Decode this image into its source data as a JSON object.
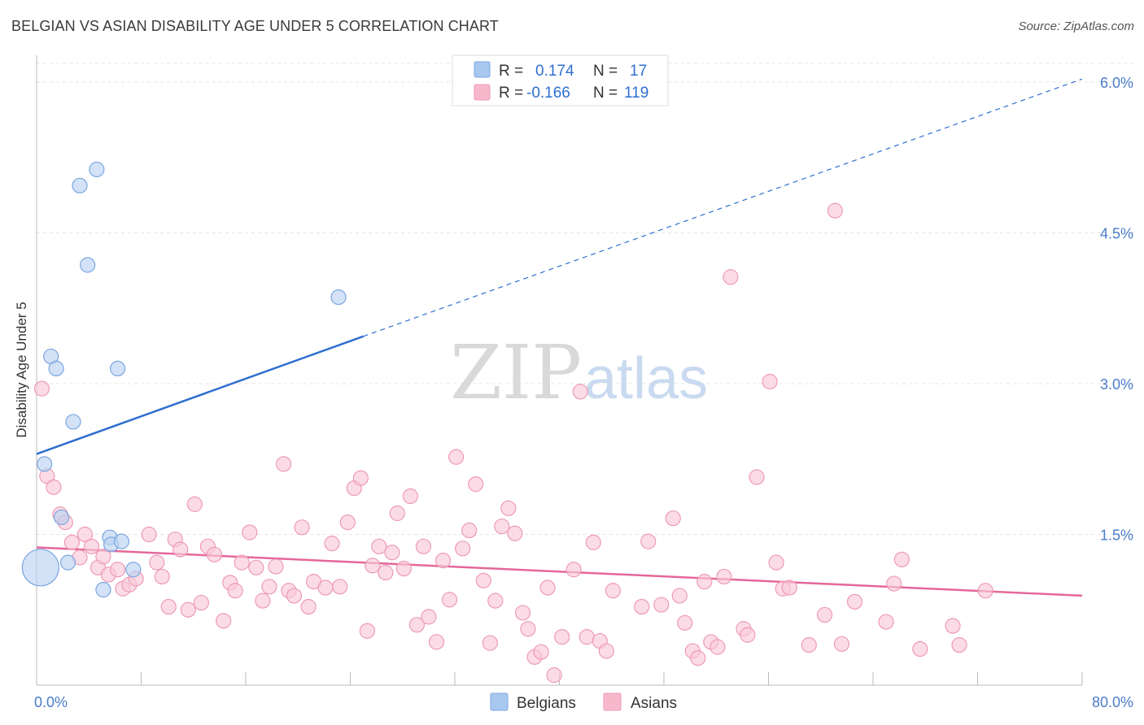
{
  "header": {
    "title": "BELGIAN VS ASIAN DISABILITY AGE UNDER 5 CORRELATION CHART",
    "source": "Source: ZipAtlas.com"
  },
  "watermark": {
    "zip": "ZIP",
    "atlas": "atlas"
  },
  "legend": {
    "r_label": "R =",
    "n_label": "N =",
    "rows": [
      {
        "r": "0.174",
        "n": "17",
        "color": "#a9c8f0"
      },
      {
        "r": "-0.166",
        "n": "119",
        "color": "#f7b8cc"
      }
    ]
  },
  "colors": {
    "belgians_fill": "#bcd3f2",
    "belgians_stroke": "#7aa6e0",
    "belgians_line": "#2f6fd0",
    "asians_fill": "#f9c9d8",
    "asians_stroke": "#ee9ab6",
    "asians_line": "#e4679a"
  },
  "chart_data": {
    "type": "scatter",
    "title": "BELGIAN VS ASIAN DISABILITY AGE UNDER 5 CORRELATION CHART",
    "ylabel": "Disability Age Under 5",
    "xlim": [
      0,
      80
    ],
    "ylim": [
      0,
      6.25
    ],
    "x_tick_labels": [
      "0.0%",
      "80.0%"
    ],
    "y_tick_labels": [
      "1.5%",
      "3.0%",
      "4.5%",
      "6.0%"
    ],
    "y_ticks": [
      1.5,
      3.0,
      4.5,
      6.0
    ],
    "grid": true,
    "legend_position": "top-center",
    "series": [
      {
        "name": "Belgians",
        "r": 0.174,
        "n": 17,
        "trend": {
          "x": [
            0,
            25
          ],
          "y": [
            2.3,
            3.47
          ],
          "extended": {
            "x": [
              25,
              80
            ],
            "y": [
              3.47,
              6.03
            ]
          }
        },
        "points": [
          [
            0.3,
            1.17,
            2.5
          ],
          [
            0.6,
            2.2,
            1
          ],
          [
            1.1,
            3.27,
            1
          ],
          [
            1.5,
            3.15,
            1
          ],
          [
            1.9,
            1.67,
            1
          ],
          [
            2.4,
            1.22,
            1
          ],
          [
            2.8,
            2.62,
            1
          ],
          [
            3.3,
            4.97,
            1
          ],
          [
            3.9,
            4.18,
            1
          ],
          [
            4.6,
            5.13,
            1
          ],
          [
            5.1,
            0.95,
            1
          ],
          [
            5.6,
            1.47,
            1
          ],
          [
            5.7,
            1.4,
            1
          ],
          [
            6.2,
            3.15,
            1
          ],
          [
            6.5,
            1.43,
            1
          ],
          [
            7.4,
            1.15,
            1
          ],
          [
            23.1,
            3.86,
            1
          ]
        ]
      },
      {
        "name": "Asians",
        "r": -0.166,
        "n": 119,
        "trend": {
          "x": [
            0,
            80
          ],
          "y": [
            1.37,
            0.89
          ]
        },
        "points": [
          [
            0.4,
            2.95,
            1
          ],
          [
            0.8,
            2.08,
            1
          ],
          [
            1.3,
            1.97,
            1
          ],
          [
            1.8,
            1.7,
            1
          ],
          [
            2.2,
            1.62,
            1
          ],
          [
            2.7,
            1.42,
            1
          ],
          [
            3.3,
            1.27,
            1
          ],
          [
            3.7,
            1.5,
            1
          ],
          [
            4.2,
            1.38,
            1
          ],
          [
            4.7,
            1.17,
            1
          ],
          [
            5.1,
            1.28,
            1
          ],
          [
            5.5,
            1.1,
            1
          ],
          [
            6.2,
            1.15,
            1
          ],
          [
            6.6,
            0.96,
            1
          ],
          [
            7.1,
            1.0,
            1
          ],
          [
            7.6,
            1.06,
            1
          ],
          [
            8.6,
            1.5,
            1
          ],
          [
            9.2,
            1.22,
            1
          ],
          [
            9.6,
            1.08,
            1
          ],
          [
            10.1,
            0.78,
            1
          ],
          [
            10.6,
            1.45,
            1
          ],
          [
            11.0,
            1.35,
            1
          ],
          [
            11.6,
            0.75,
            1
          ],
          [
            12.1,
            1.8,
            1
          ],
          [
            12.6,
            0.82,
            1
          ],
          [
            13.1,
            1.38,
            1
          ],
          [
            13.6,
            1.3,
            1
          ],
          [
            14.3,
            0.64,
            1
          ],
          [
            14.8,
            1.02,
            1
          ],
          [
            15.2,
            0.94,
            1
          ],
          [
            15.7,
            1.22,
            1
          ],
          [
            16.3,
            1.52,
            1
          ],
          [
            16.8,
            1.17,
            1
          ],
          [
            17.3,
            0.84,
            1
          ],
          [
            17.8,
            0.98,
            1
          ],
          [
            18.3,
            1.18,
            1
          ],
          [
            18.9,
            2.2,
            1
          ],
          [
            19.3,
            0.94,
            1
          ],
          [
            19.7,
            0.89,
            1
          ],
          [
            20.3,
            1.57,
            1
          ],
          [
            20.8,
            0.78,
            1
          ],
          [
            21.2,
            1.03,
            1
          ],
          [
            22.1,
            0.97,
            1
          ],
          [
            22.6,
            1.41,
            1
          ],
          [
            23.2,
            0.98,
            1
          ],
          [
            23.8,
            1.62,
            1
          ],
          [
            24.3,
            1.96,
            1
          ],
          [
            24.8,
            2.06,
            1
          ],
          [
            25.3,
            0.54,
            1
          ],
          [
            25.7,
            1.19,
            1
          ],
          [
            26.2,
            1.38,
            1
          ],
          [
            26.7,
            1.12,
            1
          ],
          [
            27.2,
            1.32,
            1
          ],
          [
            27.6,
            1.71,
            1
          ],
          [
            28.1,
            1.16,
            1
          ],
          [
            28.6,
            1.88,
            1
          ],
          [
            29.1,
            0.6,
            1
          ],
          [
            29.6,
            1.38,
            1
          ],
          [
            30.0,
            0.68,
            1
          ],
          [
            30.6,
            0.43,
            1
          ],
          [
            31.1,
            1.24,
            1
          ],
          [
            31.6,
            0.85,
            1
          ],
          [
            32.1,
            2.27,
            1
          ],
          [
            32.6,
            1.36,
            1
          ],
          [
            33.1,
            1.54,
            1
          ],
          [
            33.6,
            2.0,
            1
          ],
          [
            34.2,
            1.04,
            1
          ],
          [
            34.7,
            0.42,
            1
          ],
          [
            35.1,
            0.84,
            1
          ],
          [
            35.6,
            1.58,
            1
          ],
          [
            36.1,
            1.76,
            1
          ],
          [
            36.6,
            1.51,
            1
          ],
          [
            37.2,
            0.72,
            1
          ],
          [
            37.6,
            0.56,
            1
          ],
          [
            38.1,
            0.28,
            1
          ],
          [
            38.6,
            0.33,
            1
          ],
          [
            39.1,
            0.97,
            1
          ],
          [
            39.6,
            0.1,
            1
          ],
          [
            40.2,
            0.48,
            1
          ],
          [
            41.1,
            1.15,
            1
          ],
          [
            41.6,
            2.92,
            1
          ],
          [
            42.1,
            0.48,
            1
          ],
          [
            42.6,
            1.42,
            1
          ],
          [
            43.1,
            0.44,
            1
          ],
          [
            43.6,
            0.34,
            1
          ],
          [
            44.1,
            0.94,
            1
          ],
          [
            46.3,
            0.78,
            1
          ],
          [
            46.8,
            1.43,
            1
          ],
          [
            47.8,
            0.8,
            1
          ],
          [
            48.7,
            1.66,
            1
          ],
          [
            49.2,
            0.89,
            1
          ],
          [
            49.6,
            0.62,
            1
          ],
          [
            50.2,
            0.34,
            1
          ],
          [
            50.6,
            0.27,
            1
          ],
          [
            51.1,
            1.03,
            1
          ],
          [
            51.6,
            0.43,
            1
          ],
          [
            52.1,
            0.38,
            1
          ],
          [
            52.6,
            1.08,
            1
          ],
          [
            53.1,
            4.06,
            1
          ],
          [
            54.1,
            0.56,
            1
          ],
          [
            54.4,
            0.5,
            1
          ],
          [
            55.1,
            2.07,
            1
          ],
          [
            56.1,
            3.02,
            1
          ],
          [
            56.6,
            1.22,
            1
          ],
          [
            57.1,
            0.96,
            1
          ],
          [
            57.6,
            0.97,
            1
          ],
          [
            59.1,
            0.4,
            1
          ],
          [
            60.3,
            0.7,
            1
          ],
          [
            61.1,
            4.72,
            1
          ],
          [
            61.6,
            0.41,
            1
          ],
          [
            62.6,
            0.83,
            1
          ],
          [
            65.0,
            0.63,
            1
          ],
          [
            65.6,
            1.01,
            1
          ],
          [
            66.2,
            1.25,
            1
          ],
          [
            67.6,
            0.36,
            1
          ],
          [
            70.1,
            0.59,
            1
          ],
          [
            70.6,
            0.4,
            1
          ],
          [
            72.6,
            0.94,
            1
          ]
        ]
      }
    ]
  },
  "bottom_legend": [
    {
      "label": "Belgians",
      "color": "#a9c8f0"
    },
    {
      "label": "Asians",
      "color": "#f7b8cc"
    }
  ]
}
